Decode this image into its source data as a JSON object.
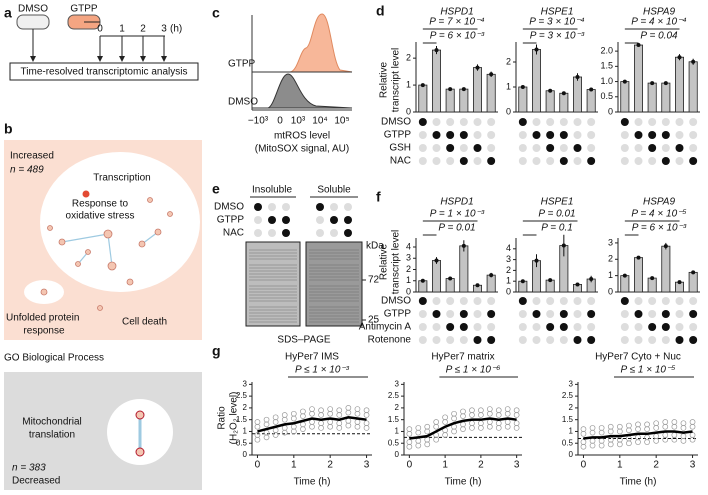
{
  "panels": {
    "a": {
      "letter": "a",
      "conditions": [
        "DMSO",
        "GTPP"
      ],
      "timepoints": [
        "0",
        "1",
        "2",
        "3"
      ],
      "time_unit": "(h)",
      "box": "Time-resolved transcriptomic analysis"
    },
    "b": {
      "letter": "b",
      "increased": "Increased",
      "n_increased": "n = 489",
      "transcription": "Transcription",
      "oxidative": [
        "Response to",
        "oxidative stress"
      ],
      "unfolded": [
        "Unfolded protein",
        "response"
      ],
      "cell_death": "Cell death",
      "go": "GO Biological Process",
      "mito": [
        "Mitochondrial",
        "translation"
      ],
      "n_decreased": "n = 383",
      "decreased": "Decreased"
    },
    "c": {
      "letter": "c",
      "labels": [
        "GTPP",
        "DMSO"
      ],
      "xticks": [
        "−10³",
        "0",
        "10³",
        "10⁴",
        "10⁵"
      ],
      "xlabel": [
        "mtROS level",
        "(MitoSOX signal, AU)"
      ]
    },
    "d": {
      "letter": "d",
      "ylabel": [
        "Relative",
        "transcript level"
      ],
      "rows": [
        "DMSO",
        "GTPP",
        "GSH",
        "NAC"
      ],
      "matrix": [
        [
          1,
          0,
          0,
          0,
          0,
          0
        ],
        [
          0,
          1,
          1,
          1,
          0,
          0
        ],
        [
          0,
          0,
          1,
          0,
          1,
          0
        ],
        [
          0,
          0,
          0,
          1,
          0,
          1
        ]
      ]
    },
    "e": {
      "letter": "e",
      "fractions": [
        "Insoluble",
        "Soluble"
      ],
      "rows": [
        "DMSO",
        "GTPP",
        "NAC"
      ],
      "matrix": [
        [
          1,
          0,
          0
        ],
        [
          0,
          1,
          1
        ],
        [
          0,
          0,
          1
        ]
      ],
      "unit": "kDa",
      "markers": [
        "72",
        "25"
      ],
      "xlabel": "SDS–PAGE"
    },
    "f": {
      "letter": "f",
      "ylabel": [
        "Relative",
        "transcript level"
      ],
      "rows": [
        "DMSO",
        "GTPP",
        "Antimycin A",
        "Rotenone"
      ],
      "matrix": [
        [
          1,
          0,
          0,
          0,
          0,
          0
        ],
        [
          0,
          1,
          0,
          1,
          0,
          1
        ],
        [
          0,
          0,
          1,
          1,
          0,
          0
        ],
        [
          0,
          0,
          0,
          0,
          1,
          1
        ]
      ]
    },
    "g": {
      "letter": "g",
      "ylabel": [
        "Ratio",
        "(H₂O₂ level)"
      ]
    }
  },
  "chart_data": [
    {
      "type": "bar",
      "title": "HSPD1",
      "annotations": [
        "P = 7 × 10⁻⁴",
        "P = 6 × 10⁻³"
      ],
      "values": [
        1,
        2.3,
        0.85,
        0.85,
        1.65,
        1.4
      ],
      "errors": [
        0.02,
        0.15,
        0.03,
        0.03,
        0.12,
        0.1
      ],
      "color": "#c4c4c4",
      "ylim": [
        0,
        2.6
      ],
      "yticks": [
        0,
        1,
        2
      ]
    },
    {
      "type": "bar",
      "title": "HSPE1",
      "annotations": [
        "P = 3 × 10⁻⁴",
        "P = 3 × 10⁻³"
      ],
      "values": [
        1,
        2.5,
        0.85,
        0.75,
        1.4,
        0.9
      ],
      "errors": [
        0.02,
        0.2,
        0.03,
        0.06,
        0.15,
        0.05
      ],
      "color": "#c4c4c4",
      "ylim": [
        0,
        2.8
      ],
      "yticks": [
        0,
        1,
        2
      ]
    },
    {
      "type": "bar",
      "title": "HSPA9",
      "annotations": [
        "P = 4 × 10⁻⁴",
        "P = 0.04"
      ],
      "values": [
        1,
        2.2,
        0.95,
        0.95,
        1.8,
        1.65
      ],
      "errors": [
        0.02,
        0.04,
        0.03,
        0.03,
        0.1,
        0.1
      ],
      "color": "#c4c4c4",
      "ylim": [
        0,
        2.3
      ],
      "yticks": [
        0,
        0.5,
        {
          "value": 1,
          "label": "1.0"
        },
        1.5,
        {
          "value": 2,
          "label": "2.0"
        }
      ]
    },
    {
      "type": "bar",
      "title": "HSPD1",
      "annotations": [
        "P = 1 × 10⁻³",
        "P = 0.01"
      ],
      "values": [
        1,
        2.8,
        1.2,
        4.1,
        0.6,
        1.5
      ],
      "errors": [
        0.03,
        0.3,
        0.1,
        0.5,
        0.05,
        0.2
      ],
      "color": "#c4c4c4",
      "ylim": [
        0,
        4.8
      ],
      "yticks": [
        0,
        1,
        2,
        3,
        4
      ]
    },
    {
      "type": "bar",
      "title": "HSPE1",
      "annotations": [
        "P = 0.01",
        "P = 0.1"
      ],
      "values": [
        1,
        2.9,
        1.1,
        4.3,
        0.7,
        1.2
      ],
      "errors": [
        0.03,
        0.6,
        0.1,
        1.0,
        0.05,
        0.3
      ],
      "color": "#c4c4c4",
      "ylim": [
        0,
        5
      ],
      "yticks": [
        0,
        1,
        2,
        3,
        4
      ]
    },
    {
      "type": "bar",
      "title": "HSPA9",
      "annotations": [
        "P = 4 × 10⁻⁵",
        "P = 6 × 10⁻³"
      ],
      "values": [
        1,
        2.1,
        0.85,
        2.8,
        0.6,
        1.2
      ],
      "errors": [
        0.02,
        0.05,
        0.05,
        0.2,
        0.03,
        0.08
      ],
      "color": "#c4c4c4",
      "ylim": [
        0,
        3.3
      ],
      "yticks": [
        0,
        1,
        2,
        3
      ]
    },
    {
      "type": "line",
      "title": "HyPer7 IMS",
      "annotation": "P ≤ 1 × 10⁻³",
      "xlabel": "Time (h)",
      "x": [
        0,
        0.25,
        0.5,
        0.75,
        1,
        1.25,
        1.5,
        1.75,
        2,
        2.25,
        2.5,
        2.75,
        3
      ],
      "values": [
        1,
        1.1,
        1.2,
        1.3,
        1.35,
        1.45,
        1.55,
        1.5,
        1.55,
        1.5,
        1.6,
        1.55,
        1.5
      ],
      "baseline": 0.9,
      "color": "#000000",
      "xlim": [
        -0.15,
        3.15
      ],
      "xticks": [
        0,
        1,
        2,
        3
      ],
      "ylim": [
        0,
        3.1
      ],
      "yticks": [
        0,
        0.5,
        1,
        1.5,
        2,
        2.5,
        3
      ]
    },
    {
      "type": "line",
      "title": "HyPer7 matrix",
      "annotation": "P ≤ 1 × 10⁻⁶",
      "xlabel": "Time (h)",
      "x": [
        0,
        0.25,
        0.5,
        0.75,
        1,
        1.25,
        1.5,
        1.75,
        2,
        2.25,
        2.5,
        2.75,
        3
      ],
      "values": [
        0.7,
        0.75,
        0.8,
        1.0,
        1.2,
        1.35,
        1.45,
        1.5,
        1.5,
        1.55,
        1.5,
        1.55,
        1.5
      ],
      "baseline": 0.75,
      "color": "#000000",
      "xlim": [
        -0.15,
        3.15
      ],
      "xticks": [
        0,
        1,
        2,
        3
      ],
      "ylim": [
        0,
        3.1
      ],
      "yticks": [
        0,
        0.5,
        1,
        1.5,
        2,
        2.5,
        3
      ]
    },
    {
      "type": "line",
      "title": "HyPer7 Cyto + Nuc",
      "annotation": "P ≤ 1 × 10⁻⁵",
      "xlabel": "Time (h)",
      "x": [
        0,
        0.25,
        0.5,
        0.75,
        1,
        1.25,
        1.5,
        1.75,
        2,
        2.25,
        2.5,
        2.75,
        3
      ],
      "values": [
        0.7,
        0.75,
        0.75,
        0.8,
        0.8,
        0.85,
        0.9,
        0.9,
        0.95,
        1.0,
        1.0,
        0.95,
        1.0
      ],
      "baseline": 0.7,
      "color": "#000000",
      "xlim": [
        -0.15,
        3.15
      ],
      "xticks": [
        0,
        1,
        2,
        3
      ],
      "ylim": [
        0,
        3.1
      ],
      "yticks": [
        0,
        0.5,
        1,
        1.5,
        2,
        2.5,
        3
      ]
    }
  ]
}
